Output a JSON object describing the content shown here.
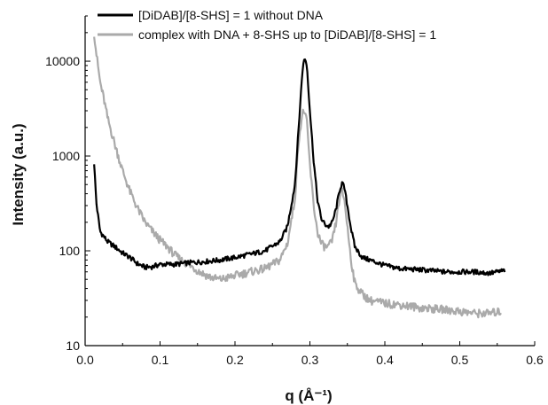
{
  "chart_data": {
    "type": "line",
    "title": "",
    "xlabel": "q (Å⁻¹)",
    "ylabel": "Intensity (a.u.)",
    "xlim": [
      0.0,
      0.6
    ],
    "ylim": [
      10,
      30000
    ],
    "yscale": "log",
    "grid": false,
    "legend_position": "top-left",
    "x_ticks": [
      {
        "value": 0.0,
        "label": "0.0"
      },
      {
        "value": 0.1,
        "label": "0.1"
      },
      {
        "value": 0.2,
        "label": "0.2"
      },
      {
        "value": 0.3,
        "label": "0.3"
      },
      {
        "value": 0.4,
        "label": "0.4"
      },
      {
        "value": 0.5,
        "label": "0.5"
      },
      {
        "value": 0.6,
        "label": "0.6"
      }
    ],
    "y_ticks": [
      {
        "value": 10,
        "label": "10"
      },
      {
        "value": 100,
        "label": "100"
      },
      {
        "value": 1000,
        "label": "1000"
      },
      {
        "value": 10000,
        "label": "10000"
      }
    ],
    "series": [
      {
        "name": "[DiDAB]/[8-SHS] = 1 without DNA",
        "color": "#000000",
        "x": [
          0.012,
          0.015,
          0.02,
          0.03,
          0.04,
          0.05,
          0.06,
          0.07,
          0.08,
          0.09,
          0.1,
          0.12,
          0.14,
          0.16,
          0.18,
          0.2,
          0.22,
          0.24,
          0.26,
          0.27,
          0.28,
          0.285,
          0.29,
          0.293,
          0.296,
          0.3,
          0.305,
          0.31,
          0.315,
          0.32,
          0.325,
          0.33,
          0.335,
          0.34,
          0.343,
          0.346,
          0.35,
          0.355,
          0.36,
          0.37,
          0.38,
          0.4,
          0.42,
          0.45,
          0.48,
          0.5,
          0.52,
          0.54,
          0.56
        ],
        "y": [
          850,
          320,
          160,
          125,
          110,
          95,
          85,
          73,
          67,
          68,
          72,
          72,
          75,
          77,
          80,
          85,
          92,
          100,
          125,
          180,
          500,
          2000,
          8000,
          11000,
          9000,
          3000,
          900,
          350,
          220,
          190,
          180,
          200,
          280,
          450,
          520,
          460,
          300,
          170,
          110,
          85,
          80,
          70,
          65,
          63,
          60,
          60,
          60,
          58,
          62
        ]
      },
      {
        "name": "complex with DNA + 8-SHS up to [DiDAB]/[8-SHS] = 1",
        "color": "#aaaaaa",
        "x": [
          0.012,
          0.015,
          0.02,
          0.025,
          0.03,
          0.04,
          0.05,
          0.06,
          0.07,
          0.08,
          0.09,
          0.1,
          0.11,
          0.12,
          0.13,
          0.14,
          0.15,
          0.16,
          0.17,
          0.18,
          0.19,
          0.2,
          0.22,
          0.24,
          0.26,
          0.27,
          0.28,
          0.285,
          0.29,
          0.293,
          0.296,
          0.3,
          0.305,
          0.31,
          0.315,
          0.32,
          0.325,
          0.33,
          0.335,
          0.34,
          0.343,
          0.346,
          0.35,
          0.355,
          0.36,
          0.37,
          0.38,
          0.4,
          0.42,
          0.45,
          0.48,
          0.5,
          0.52,
          0.54,
          0.555
        ],
        "y": [
          20000,
          12000,
          6000,
          4000,
          2500,
          1300,
          700,
          420,
          280,
          200,
          160,
          130,
          110,
          90,
          78,
          70,
          62,
          56,
          52,
          50,
          52,
          55,
          60,
          65,
          80,
          120,
          350,
          1500,
          2800,
          3000,
          2200,
          800,
          300,
          160,
          120,
          110,
          110,
          130,
          200,
          380,
          420,
          350,
          180,
          80,
          45,
          35,
          30,
          28,
          27,
          25,
          24,
          23,
          22,
          22,
          23
        ]
      }
    ]
  }
}
